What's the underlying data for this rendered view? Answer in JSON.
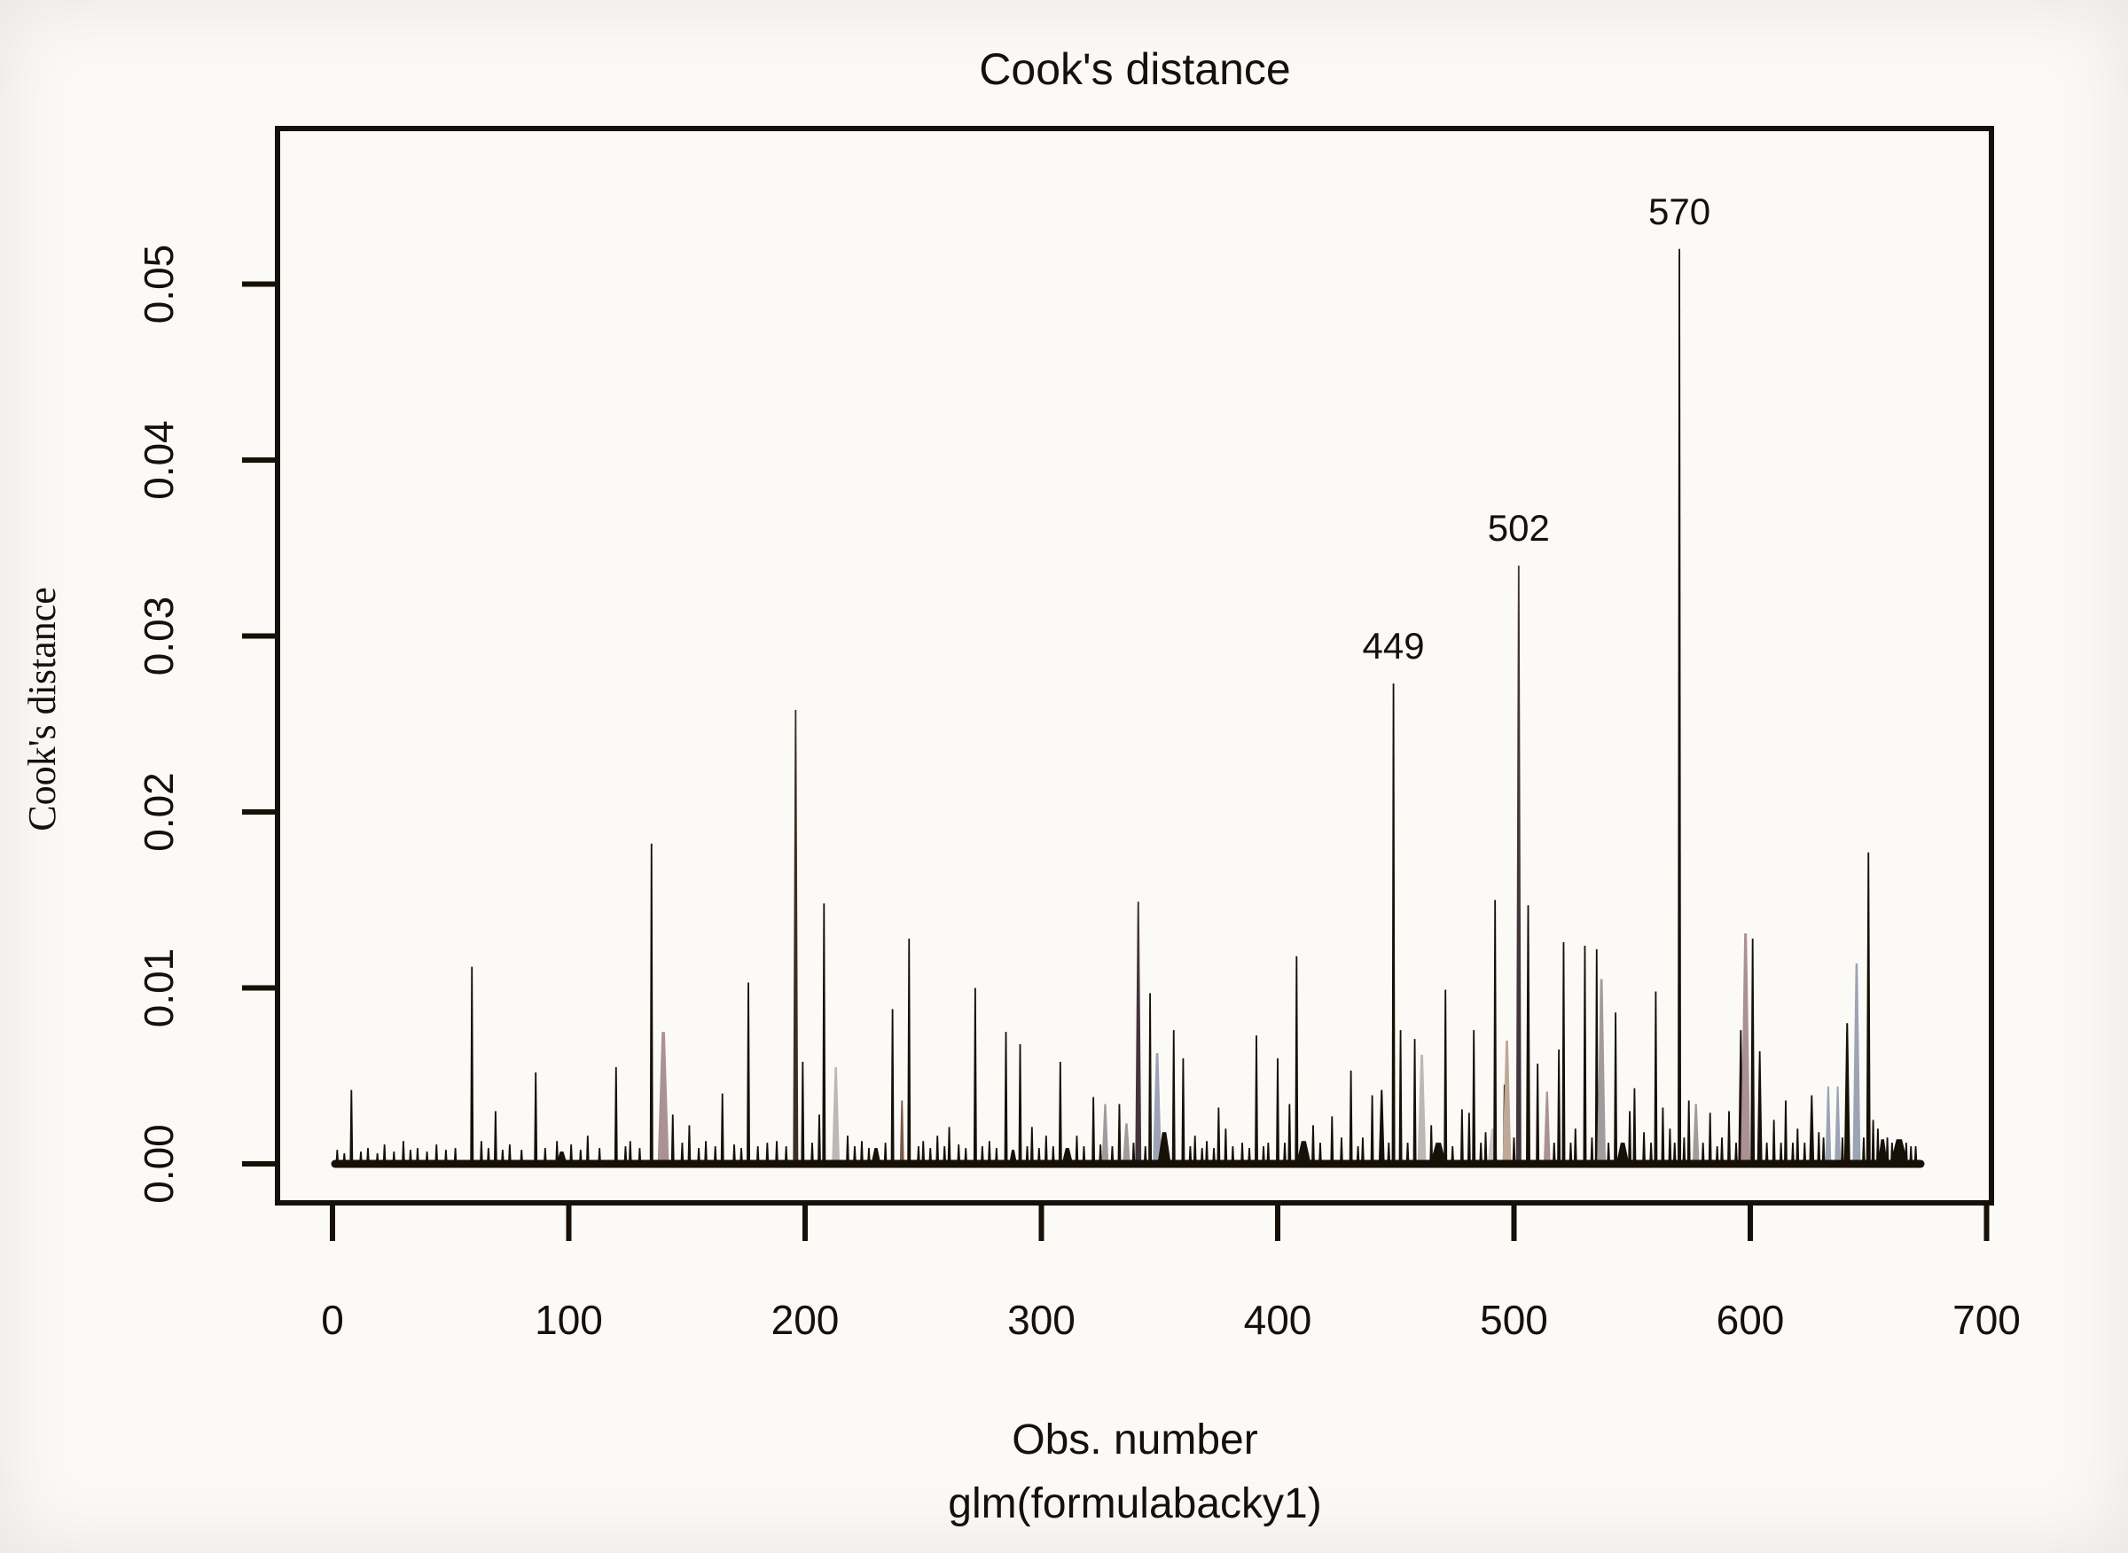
{
  "title": "Cook's distance",
  "axes": {
    "y_label": "Cook's distance",
    "x_label_line1": "Obs. number",
    "x_label_line2": "glm(formulabacky1)"
  },
  "colors": {
    "ink": "#161007",
    "background": "#fbfaf7",
    "darkBrown": "#3f2d24",
    "brown": "#7c5a48",
    "mauvePink": "#ab9194",
    "darkMauve": "#43353c",
    "lightGray": "#bdb7b7",
    "paleGray": "#cac4c4",
    "gray": "#a29a9c",
    "blueGray": "#9ba3b4",
    "tan": "#c0a896"
  },
  "chart_data": {
    "type": "bar",
    "subtype": "spike-needle-plot",
    "title": "Cook's distance",
    "xlabel": "Obs. number",
    "xlabel_sub": "glm(formulabacky1)",
    "ylabel": "Cook's distance",
    "xlim": [
      0,
      700
    ],
    "ylim": [
      0,
      0.055
    ],
    "grid": false,
    "x_ticks": [
      0,
      100,
      200,
      300,
      400,
      500,
      600,
      700
    ],
    "x_tick_labels": [
      "0",
      "100",
      "200",
      "300",
      "400",
      "500",
      "600",
      "700"
    ],
    "y_ticks": [
      0.0,
      0.01,
      0.02,
      0.03,
      0.04,
      0.05
    ],
    "y_tick_labels": [
      "0.00",
      "0.01",
      "0.02",
      "0.03",
      "0.04",
      "0.05"
    ],
    "labeled_points": [
      {
        "label": "449",
        "obs": 449,
        "value": 0.0273
      },
      {
        "label": "502",
        "obs": 502,
        "value": 0.034
      },
      {
        "label": "570",
        "obs": 570,
        "value": 0.052
      }
    ],
    "spikes": [
      [
        2,
        0.0008
      ],
      [
        5,
        0.0006
      ],
      [
        8,
        0.0042
      ],
      [
        12,
        0.0007
      ],
      [
        15,
        0.0009
      ],
      [
        19,
        0.0006
      ],
      [
        22,
        0.0011
      ],
      [
        26,
        0.0007
      ],
      [
        30,
        0.0013
      ],
      [
        33,
        0.0008
      ],
      [
        36,
        0.0009
      ],
      [
        40,
        0.0007
      ],
      [
        44,
        0.0011
      ],
      [
        48,
        0.0008
      ],
      [
        52,
        0.0009
      ],
      [
        59,
        0.0112
      ],
      [
        63,
        0.0013
      ],
      [
        66,
        0.0009
      ],
      [
        69,
        0.003
      ],
      [
        72,
        0.0008
      ],
      [
        75,
        0.0011
      ],
      [
        80,
        0.0008
      ],
      [
        86,
        0.0052
      ],
      [
        90,
        0.0009
      ],
      [
        95,
        0.0013
      ],
      [
        97,
        0.0007,
        14
      ],
      [
        101,
        0.0011
      ],
      [
        105,
        0.0008
      ],
      [
        108,
        0.0016
      ],
      [
        113,
        0.0009
      ],
      [
        120,
        0.0055
      ],
      [
        124,
        0.001
      ],
      [
        126,
        0.0013
      ],
      [
        130,
        0.0009
      ],
      [
        135,
        0.0182
      ],
      [
        140,
        0.0075,
        13,
        "mauvePink"
      ],
      [
        144,
        0.0028
      ],
      [
        148,
        0.0012
      ],
      [
        151,
        0.0022
      ],
      [
        155,
        0.0009
      ],
      [
        158,
        0.0013
      ],
      [
        162,
        0.001
      ],
      [
        165,
        0.004
      ],
      [
        170,
        0.0011
      ],
      [
        173,
        0.0009
      ],
      [
        176,
        0.0103
      ],
      [
        180,
        0.001
      ],
      [
        184,
        0.0012
      ],
      [
        188,
        0.0013
      ],
      [
        192,
        0.001
      ],
      [
        196,
        0.0258,
        6,
        "darkBrown"
      ],
      [
        199,
        0.0058
      ],
      [
        203,
        0.0012
      ],
      [
        206,
        0.0028
      ],
      [
        208,
        0.0148
      ],
      [
        213,
        0.0055,
        9,
        "lightGray"
      ],
      [
        218,
        0.0016
      ],
      [
        221,
        0.001
      ],
      [
        224,
        0.0013
      ],
      [
        227,
        0.0009
      ],
      [
        230,
        0.0009,
        12
      ],
      [
        234,
        0.0012
      ],
      [
        237,
        0.0088
      ],
      [
        241,
        0.0036,
        5,
        "brown"
      ],
      [
        244,
        0.0128
      ],
      [
        248,
        0.001
      ],
      [
        250,
        0.0013
      ],
      [
        253,
        0.0009
      ],
      [
        256,
        0.0016
      ],
      [
        259,
        0.001
      ],
      [
        261,
        0.0021
      ],
      [
        265,
        0.0011
      ],
      [
        268,
        0.0009
      ],
      [
        272,
        0.01
      ],
      [
        275,
        0.001
      ],
      [
        278,
        0.0013
      ],
      [
        281,
        0.0009
      ],
      [
        285,
        0.0075
      ],
      [
        288,
        0.0008,
        10
      ],
      [
        291,
        0.0068
      ],
      [
        294,
        0.001
      ],
      [
        296,
        0.0021
      ],
      [
        299,
        0.0009
      ],
      [
        302,
        0.0016
      ],
      [
        305,
        0.001
      ],
      [
        308,
        0.0058
      ],
      [
        311,
        0.0009,
        14
      ],
      [
        315,
        0.0016
      ],
      [
        318,
        0.001
      ],
      [
        322,
        0.0038
      ],
      [
        325,
        0.0011
      ],
      [
        327,
        0.0034,
        8,
        "gray"
      ],
      [
        330,
        0.001
      ],
      [
        333,
        0.0034
      ],
      [
        336,
        0.0023,
        9,
        "gray"
      ],
      [
        339,
        0.0012
      ],
      [
        341,
        0.0149,
        7,
        "darkMauve"
      ],
      [
        344,
        0.001
      ],
      [
        346,
        0.0097
      ],
      [
        349,
        0.0063,
        10,
        "blueGray"
      ],
      [
        352,
        0.0018,
        16
      ],
      [
        356,
        0.0076
      ],
      [
        360,
        0.006
      ],
      [
        363,
        0.001
      ],
      [
        365,
        0.0016
      ],
      [
        368,
        0.0009
      ],
      [
        370,
        0.0013
      ],
      [
        373,
        0.0009
      ],
      [
        375,
        0.0032
      ],
      [
        378,
        0.002
      ],
      [
        381,
        0.001
      ],
      [
        385,
        0.0012
      ],
      [
        388,
        0.0009
      ],
      [
        391,
        0.0073
      ],
      [
        394,
        0.001
      ],
      [
        396,
        0.0012
      ],
      [
        400,
        0.006
      ],
      [
        403,
        0.0012
      ],
      [
        405,
        0.0034
      ],
      [
        408,
        0.0118
      ],
      [
        411,
        0.0013,
        18
      ],
      [
        415,
        0.0022
      ],
      [
        418,
        0.0012
      ],
      [
        423,
        0.0027
      ],
      [
        427,
        0.0015
      ],
      [
        431,
        0.0053
      ],
      [
        434,
        0.001
      ],
      [
        436,
        0.0015
      ],
      [
        440,
        0.0039
      ],
      [
        444,
        0.0042,
        7
      ],
      [
        447,
        0.0012
      ],
      [
        449,
        0.0273
      ],
      [
        452,
        0.0076
      ],
      [
        455,
        0.0012
      ],
      [
        458,
        0.0071
      ],
      [
        461,
        0.0062,
        10,
        "lightGray"
      ],
      [
        465,
        0.0022
      ],
      [
        468,
        0.0012,
        20
      ],
      [
        471,
        0.0099
      ],
      [
        474,
        0.001
      ],
      [
        478,
        0.0031
      ],
      [
        481,
        0.0029
      ],
      [
        483,
        0.0076
      ],
      [
        486,
        0.0012
      ],
      [
        488,
        0.0018
      ],
      [
        491,
        0.002,
        12,
        "paleGray"
      ],
      [
        492,
        0.015
      ],
      [
        496,
        0.0045
      ],
      [
        497,
        0.007,
        10,
        "tan"
      ],
      [
        500,
        0.0015
      ],
      [
        502,
        0.034,
        6,
        "darkMauve"
      ],
      [
        506,
        0.0147,
        5
      ],
      [
        510,
        0.0057
      ],
      [
        514,
        0.0041,
        8,
        "mauvePink"
      ],
      [
        517,
        0.0012
      ],
      [
        519,
        0.0065
      ],
      [
        521,
        0.0126
      ],
      [
        524,
        0.0012
      ],
      [
        526,
        0.002
      ],
      [
        530,
        0.0124
      ],
      [
        533,
        0.0015
      ],
      [
        535,
        0.0122
      ],
      [
        537,
        0.0105,
        10,
        "gray"
      ],
      [
        540,
        0.0012
      ],
      [
        543,
        0.0086
      ],
      [
        546,
        0.0012,
        16
      ],
      [
        549,
        0.003
      ],
      [
        551,
        0.0043
      ],
      [
        555,
        0.0018
      ],
      [
        558,
        0.0012
      ],
      [
        560,
        0.0098
      ],
      [
        563,
        0.0032
      ],
      [
        566,
        0.002
      ],
      [
        568,
        0.0012
      ],
      [
        570,
        0.052
      ],
      [
        572,
        0.0015
      ],
      [
        574,
        0.0036
      ],
      [
        577,
        0.0034,
        8,
        "gray"
      ],
      [
        580,
        0.0012
      ],
      [
        583,
        0.0029
      ],
      [
        586,
        0.001
      ],
      [
        588,
        0.0015
      ],
      [
        591,
        0.003
      ],
      [
        594,
        0.0012
      ],
      [
        596,
        0.0076,
        6
      ],
      [
        598,
        0.0131,
        11,
        "mauvePink"
      ],
      [
        601,
        0.0128,
        5
      ],
      [
        604,
        0.0064,
        6
      ],
      [
        607,
        0.0012
      ],
      [
        610,
        0.0025
      ],
      [
        613,
        0.0012
      ],
      [
        615,
        0.0036
      ],
      [
        618,
        0.0012
      ],
      [
        620,
        0.002
      ],
      [
        623,
        0.0012
      ],
      [
        626,
        0.0039,
        6
      ],
      [
        629,
        0.0018
      ],
      [
        631,
        0.0015
      ],
      [
        633,
        0.0044,
        7,
        "blueGray"
      ],
      [
        637,
        0.0044,
        7,
        "blueGray"
      ],
      [
        639,
        0.0015
      ],
      [
        641,
        0.008,
        7
      ],
      [
        645,
        0.0114,
        9,
        "blueGray"
      ],
      [
        648,
        0.0015
      ],
      [
        650,
        0.0177,
        5
      ],
      [
        652,
        0.0025
      ],
      [
        654,
        0.002
      ],
      [
        656,
        0.0014,
        12
      ],
      [
        658,
        0.0015
      ],
      [
        660,
        0.0012
      ],
      [
        663,
        0.0014,
        22
      ],
      [
        666,
        0.0012
      ],
      [
        668,
        0.001
      ],
      [
        670,
        0.001
      ]
    ]
  }
}
